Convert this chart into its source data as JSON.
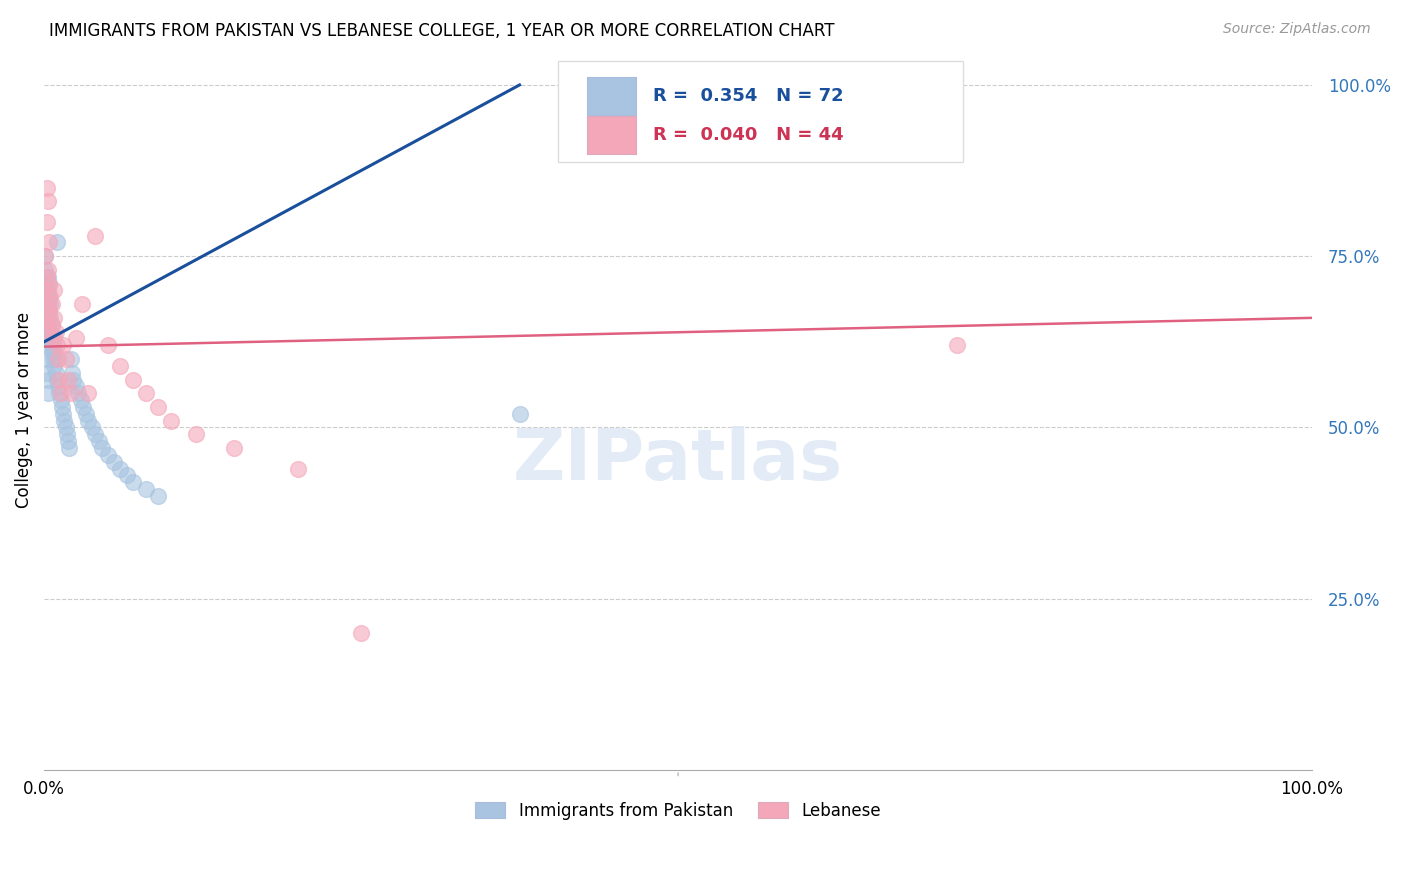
{
  "title": "IMMIGRANTS FROM PAKISTAN VS LEBANESE COLLEGE, 1 YEAR OR MORE CORRELATION CHART",
  "source": "Source: ZipAtlas.com",
  "ylabel": "College, 1 year or more",
  "ytick_labels": [
    "100.0%",
    "75.0%",
    "50.0%",
    "25.0%"
  ],
  "ytick_values": [
    1.0,
    0.75,
    0.5,
    0.25
  ],
  "xlim": [
    0.0,
    1.0
  ],
  "ylim": [
    0.0,
    1.05
  ],
  "R_pakistan": 0.354,
  "N_pakistan": 72,
  "R_lebanese": 0.04,
  "N_lebanese": 44,
  "color_pakistan": "#a8c4e0",
  "color_lebanese": "#f4a7b9",
  "line_color_pakistan": "#1a4f9c",
  "line_color_lebanese": "#e06080",
  "legend_label_pakistan": "Immigrants from Pakistan",
  "legend_label_lebanese": "Lebanese",
  "pak_line_x0": 0.0,
  "pak_line_y0": 0.625,
  "pak_line_x1": 0.375,
  "pak_line_y1": 1.0,
  "leb_line_x0": 0.0,
  "leb_line_y0": 0.618,
  "leb_line_x1": 1.0,
  "leb_line_y1": 0.66,
  "pakistan_x": [
    0.001,
    0.001,
    0.001,
    0.001,
    0.001,
    0.002,
    0.002,
    0.002,
    0.002,
    0.002,
    0.002,
    0.002,
    0.002,
    0.003,
    0.003,
    0.003,
    0.003,
    0.003,
    0.003,
    0.003,
    0.004,
    0.004,
    0.004,
    0.004,
    0.004,
    0.005,
    0.005,
    0.005,
    0.005,
    0.006,
    0.006,
    0.006,
    0.007,
    0.007,
    0.008,
    0.008,
    0.008,
    0.009,
    0.009,
    0.01,
    0.01,
    0.011,
    0.012,
    0.013,
    0.014,
    0.015,
    0.016,
    0.017,
    0.018,
    0.019,
    0.02,
    0.021,
    0.022,
    0.023,
    0.025,
    0.027,
    0.029,
    0.031,
    0.033,
    0.035,
    0.038,
    0.04,
    0.043,
    0.046,
    0.05,
    0.055,
    0.06,
    0.065,
    0.07,
    0.08,
    0.09,
    0.375
  ],
  "pakistan_y": [
    0.66,
    0.68,
    0.71,
    0.73,
    0.75,
    0.63,
    0.65,
    0.67,
    0.68,
    0.7,
    0.72,
    0.6,
    0.58,
    0.64,
    0.66,
    0.68,
    0.7,
    0.72,
    0.55,
    0.57,
    0.63,
    0.65,
    0.67,
    0.69,
    0.71,
    0.62,
    0.64,
    0.66,
    0.68,
    0.61,
    0.63,
    0.65,
    0.6,
    0.62,
    0.59,
    0.61,
    0.63,
    0.58,
    0.6,
    0.57,
    0.77,
    0.56,
    0.55,
    0.54,
    0.53,
    0.52,
    0.51,
    0.5,
    0.49,
    0.48,
    0.47,
    0.6,
    0.58,
    0.57,
    0.56,
    0.55,
    0.54,
    0.53,
    0.52,
    0.51,
    0.5,
    0.49,
    0.48,
    0.47,
    0.46,
    0.45,
    0.44,
    0.43,
    0.42,
    0.41,
    0.4,
    0.52
  ],
  "lebanese_x": [
    0.001,
    0.001,
    0.001,
    0.002,
    0.002,
    0.002,
    0.002,
    0.003,
    0.003,
    0.003,
    0.004,
    0.004,
    0.004,
    0.005,
    0.005,
    0.006,
    0.006,
    0.007,
    0.008,
    0.008,
    0.009,
    0.01,
    0.011,
    0.012,
    0.013,
    0.015,
    0.017,
    0.019,
    0.021,
    0.025,
    0.03,
    0.035,
    0.04,
    0.05,
    0.06,
    0.07,
    0.08,
    0.09,
    0.1,
    0.12,
    0.15,
    0.2,
    0.25,
    0.72
  ],
  "lebanese_y": [
    0.65,
    0.7,
    0.75,
    0.68,
    0.72,
    0.8,
    0.85,
    0.66,
    0.73,
    0.83,
    0.67,
    0.71,
    0.77,
    0.64,
    0.69,
    0.65,
    0.68,
    0.63,
    0.66,
    0.7,
    0.64,
    0.62,
    0.6,
    0.57,
    0.55,
    0.62,
    0.6,
    0.57,
    0.55,
    0.63,
    0.68,
    0.55,
    0.78,
    0.62,
    0.59,
    0.57,
    0.55,
    0.53,
    0.51,
    0.49,
    0.47,
    0.44,
    0.2,
    0.62
  ]
}
